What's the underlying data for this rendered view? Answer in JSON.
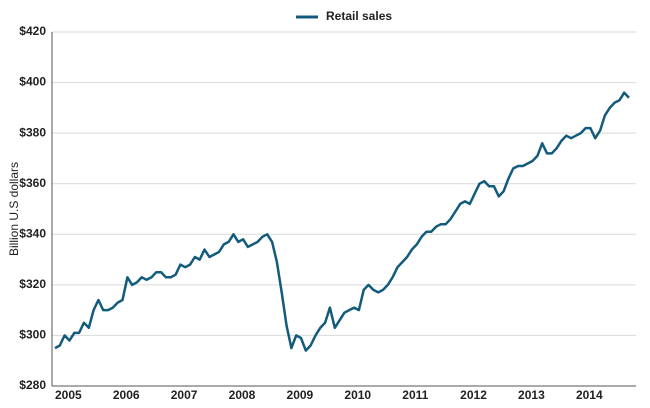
{
  "chart_data": {
    "type": "line",
    "y_label": "Billion U.S dollars",
    "categories": [
      "2005",
      null,
      null,
      null,
      null,
      null,
      null,
      null,
      null,
      null,
      null,
      null,
      "2006",
      null,
      null,
      null,
      null,
      null,
      null,
      null,
      null,
      null,
      null,
      null,
      "2007",
      null,
      null,
      null,
      null,
      null,
      null,
      null,
      null,
      null,
      null,
      null,
      "2008",
      null,
      null,
      null,
      null,
      null,
      null,
      null,
      null,
      null,
      null,
      null,
      "2009",
      null,
      null,
      null,
      null,
      null,
      null,
      null,
      null,
      null,
      null,
      null,
      "2010",
      null,
      null,
      null,
      null,
      null,
      null,
      null,
      null,
      null,
      null,
      null,
      "2011",
      null,
      null,
      null,
      null,
      null,
      null,
      null,
      null,
      null,
      null,
      null,
      "2012",
      null,
      null,
      null,
      null,
      null,
      null,
      null,
      null,
      null,
      null,
      null,
      "2013",
      null,
      null,
      null,
      null,
      null,
      null,
      null,
      null,
      null,
      null,
      null,
      "2014",
      null,
      null,
      null,
      null,
      null,
      null,
      null,
      null,
      null,
      null,
      null
    ],
    "series": [
      {
        "name": "Retail sales",
        "color": "#135b7c",
        "values": [
          295,
          296,
          300,
          298,
          301,
          301,
          305,
          303,
          310,
          314,
          310,
          310,
          311,
          313,
          314,
          323,
          320,
          321,
          323,
          322,
          323,
          325,
          325,
          323,
          323,
          324,
          328,
          327,
          328,
          331,
          330,
          334,
          331,
          332,
          333,
          336,
          337,
          340,
          337,
          338,
          335,
          336,
          337,
          339,
          340,
          337,
          329,
          317,
          304,
          295,
          300,
          299,
          294,
          296,
          300,
          303,
          305,
          311,
          303,
          306,
          309,
          310,
          311,
          310,
          318,
          320,
          318,
          317,
          318,
          320,
          323,
          327,
          329,
          331,
          334,
          336,
          339,
          341,
          341,
          343,
          344,
          344,
          346,
          349,
          352,
          353,
          352,
          356,
          360,
          361,
          359,
          359,
          355,
          357,
          362,
          366,
          367,
          367,
          368,
          369,
          371,
          376,
          372,
          372,
          374,
          377,
          379,
          378,
          379,
          380,
          382,
          382,
          378,
          381,
          387,
          390,
          392,
          393,
          396,
          394
        ]
      }
    ],
    "ylim": [
      280,
      420
    ],
    "yticks": [
      {
        "value": 280,
        "label": "$280"
      },
      {
        "value": 300,
        "label": "$300"
      },
      {
        "value": 320,
        "label": "$320"
      },
      {
        "value": 340,
        "label": "$340"
      },
      {
        "value": 360,
        "label": "$360"
      },
      {
        "value": 380,
        "label": "$380"
      },
      {
        "value": 400,
        "label": "$400"
      },
      {
        "value": 420,
        "label": "$420"
      }
    ],
    "grid": true,
    "legend": "top"
  }
}
